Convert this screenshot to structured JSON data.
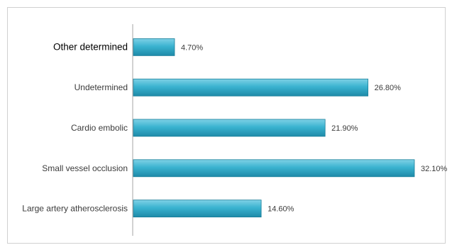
{
  "chart_data": {
    "type": "bar",
    "orientation": "horizontal",
    "categories": [
      "Other determined",
      "Undetermined",
      "Cardio embolic",
      "Small vessel occlusion",
      "Large artery atherosclerosis"
    ],
    "values": [
      4.7,
      26.8,
      21.9,
      32.1,
      14.6
    ],
    "data_labels": [
      "4.70%",
      "26.80%",
      "21.90%",
      "32.10%",
      "14.60%"
    ],
    "title": "",
    "xlabel": "",
    "ylabel": "",
    "xlim": [
      0,
      33
    ],
    "grid": false,
    "legend": "none",
    "colors": {
      "bar_top": "#7fd1e6",
      "bar_mid": "#3ab3d0",
      "bar_bottom": "#1e8aa8",
      "bar_stroke": "#1b7f9a",
      "axis": "#a6a6a6"
    }
  }
}
